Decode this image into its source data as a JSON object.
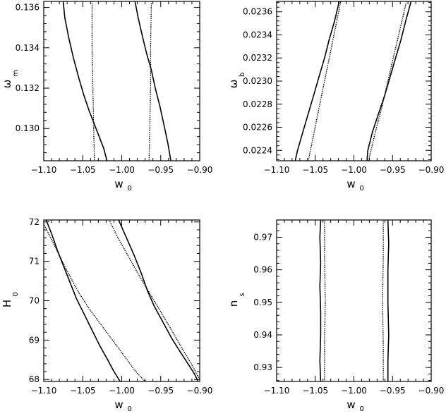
{
  "chart_data": [
    {
      "type": "line",
      "xlabel": "w",
      "xlabel_sub": "0",
      "ylabel": "ω",
      "ylabel_sub": "m",
      "xlim": [
        -1.1,
        -0.9
      ],
      "ylim": [
        0.1284,
        0.1363
      ],
      "xticks": [
        -1.1,
        -1.05,
        -1.0,
        -0.95,
        -0.9
      ],
      "xtick_labels": [
        "−1.10",
        "−1.05",
        "−1.00",
        "−0.95",
        "−0.90"
      ],
      "yticks": [
        0.13,
        0.132,
        0.134,
        0.136
      ],
      "ytick_labels": [
        "0.130",
        "0.132",
        "0.134",
        "0.136"
      ],
      "series": [
        {
          "style": "solid",
          "x": [
            -1.075,
            -1.073,
            -1.068,
            -1.062,
            -1.055,
            -1.049,
            -1.042,
            -1.035,
            -1.029,
            -1.023,
            -1.019
          ],
          "y": [
            0.1363,
            0.1355,
            0.1345,
            0.1335,
            0.1325,
            0.1317,
            0.1309,
            0.1302,
            0.1296,
            0.129,
            0.1284
          ]
        },
        {
          "style": "solid",
          "x": [
            -0.983,
            -0.979,
            -0.973,
            -0.968,
            -0.962,
            -0.957,
            -0.951,
            -0.946,
            -0.941,
            -0.937
          ],
          "y": [
            0.1363,
            0.1355,
            0.1345,
            0.1337,
            0.1329,
            0.132,
            0.1311,
            0.1302,
            0.1293,
            0.1284
          ]
        },
        {
          "style": "dotted",
          "x": [
            -1.038,
            -1.038,
            -1.037,
            -1.036,
            -1.035
          ],
          "y": [
            0.1363,
            0.134,
            0.132,
            0.13,
            0.1284
          ]
        },
        {
          "style": "dotted",
          "x": [
            -0.962,
            -0.963,
            -0.963,
            -0.964,
            -0.965
          ],
          "y": [
            0.1363,
            0.134,
            0.132,
            0.13,
            0.1284
          ]
        }
      ]
    },
    {
      "type": "line",
      "xlabel": "w",
      "xlabel_sub": "0",
      "ylabel": "ω",
      "ylabel_sub": "b",
      "xlim": [
        -1.1,
        -0.9
      ],
      "ylim": [
        0.02231,
        0.02369
      ],
      "xticks": [
        -1.1,
        -1.05,
        -1.0,
        -0.95,
        -0.9
      ],
      "xtick_labels": [
        "−1.10",
        "−1.05",
        "−1.00",
        "−0.95",
        "−0.90"
      ],
      "yticks": [
        0.0224,
        0.0226,
        0.0228,
        0.023,
        0.0232,
        0.0234,
        0.0236
      ],
      "ytick_labels": [
        "0.0224",
        "0.0226",
        "0.0228",
        "0.0230",
        "0.0232",
        "0.0234",
        "0.0236"
      ],
      "series": [
        {
          "style": "solid",
          "x": [
            -1.076,
            -1.073,
            -1.066,
            -1.059,
            -1.052,
            -1.045,
            -1.038,
            -1.032,
            -1.025,
            -1.019
          ],
          "y": [
            0.02231,
            0.0224,
            0.02256,
            0.02272,
            0.02288,
            0.02304,
            0.0232,
            0.02336,
            0.02352,
            0.02369
          ]
        },
        {
          "style": "solid",
          "x": [
            -0.983,
            -0.982,
            -0.976,
            -0.968,
            -0.96,
            -0.953,
            -0.946,
            -0.939,
            -0.933,
            -0.926
          ],
          "y": [
            0.02231,
            0.0224,
            0.02256,
            0.02272,
            0.02288,
            0.02304,
            0.0232,
            0.02336,
            0.02352,
            0.02369
          ]
        },
        {
          "style": "dotted",
          "x": [
            -1.059,
            -1.052,
            -1.045,
            -1.038,
            -1.031,
            -1.024,
            -1.017
          ],
          "y": [
            0.02231,
            0.02254,
            0.02277,
            0.023,
            0.02323,
            0.02346,
            0.02369
          ]
        },
        {
          "style": "dotted",
          "x": [
            -0.981,
            -0.973,
            -0.964,
            -0.956,
            -0.948,
            -0.94,
            -0.932
          ],
          "y": [
            0.02231,
            0.02254,
            0.02277,
            0.023,
            0.02323,
            0.02346,
            0.02369
          ]
        }
      ]
    },
    {
      "type": "line",
      "xlabel": "w",
      "xlabel_sub": "0",
      "ylabel": "H",
      "ylabel_sub": "0",
      "xlim": [
        -1.1,
        -0.9
      ],
      "ylim": [
        67.95,
        72.05
      ],
      "xticks": [
        -1.1,
        -1.05,
        -1.0,
        -0.95,
        -0.9
      ],
      "xtick_labels": [
        "−1.10",
        "−1.05",
        "−1.00",
        "−0.95",
        "−0.90"
      ],
      "yticks": [
        68,
        69,
        70,
        71,
        72
      ],
      "ytick_labels": [
        "68",
        "69",
        "70",
        "71",
        "72"
      ],
      "series": [
        {
          "style": "solid",
          "x": [
            -1.097,
            -1.09,
            -1.082,
            -1.074,
            -1.066,
            -1.058,
            -1.048,
            -1.038,
            -1.028,
            -1.018,
            -1.01,
            -1.002
          ],
          "y": [
            72.05,
            71.7,
            71.25,
            70.85,
            70.45,
            70.05,
            69.65,
            69.25,
            68.85,
            68.5,
            68.2,
            67.95
          ]
        },
        {
          "style": "solid",
          "x": [
            -1.004,
            -0.994,
            -0.984,
            -0.975,
            -0.967,
            -0.958,
            -0.947,
            -0.936,
            -0.925,
            -0.915,
            -0.907,
            -0.902
          ],
          "y": [
            72.05,
            71.6,
            71.15,
            70.7,
            70.25,
            69.85,
            69.45,
            69.05,
            68.7,
            68.4,
            68.15,
            67.95
          ]
        },
        {
          "style": "dotted",
          "x": [
            -1.1,
            -1.085,
            -1.07,
            -1.055,
            -1.04,
            -1.025,
            -1.01,
            -0.995,
            -0.982,
            -0.97
          ],
          "y": [
            71.95,
            71.35,
            70.75,
            70.2,
            69.75,
            69.35,
            68.95,
            68.55,
            68.2,
            67.95
          ]
        },
        {
          "style": "dotted",
          "x": [
            -1.016,
            -1.005,
            -0.992,
            -0.978,
            -0.963,
            -0.948,
            -0.933,
            -0.92,
            -0.908,
            -0.9
          ],
          "y": [
            72.05,
            71.6,
            71.15,
            70.65,
            70.15,
            69.65,
            69.15,
            68.7,
            68.3,
            68.0
          ]
        }
      ]
    },
    {
      "type": "line",
      "xlabel": "w",
      "xlabel_sub": "0",
      "ylabel": "n",
      "ylabel_sub": "s",
      "xlim": [
        -1.1,
        -0.9
      ],
      "ylim": [
        0.9257,
        0.9753
      ],
      "xticks": [
        -1.1,
        -1.05,
        -1.0,
        -0.95,
        -0.9
      ],
      "xtick_labels": [
        "−1.10",
        "−1.05",
        "−1.00",
        "−0.95",
        "−0.90"
      ],
      "yticks": [
        0.93,
        0.94,
        0.95,
        0.96,
        0.97
      ],
      "ytick_labels": [
        "0.93",
        "0.94",
        "0.95",
        "0.96",
        "0.97"
      ],
      "series": [
        {
          "style": "solid",
          "x": [
            -1.043,
            -1.044,
            -1.043,
            -1.044,
            -1.043,
            -1.043,
            -1.044,
            -1.043
          ],
          "y": [
            0.9753,
            0.97,
            0.962,
            0.955,
            0.947,
            0.94,
            0.932,
            0.9257
          ]
        },
        {
          "style": "solid",
          "x": [
            -0.956,
            -0.955,
            -0.956,
            -0.956,
            -0.955,
            -0.956,
            -0.956
          ],
          "y": [
            0.9753,
            0.968,
            0.96,
            0.95,
            0.94,
            0.932,
            0.9257
          ]
        },
        {
          "style": "dotted",
          "x": [
            -1.038,
            -1.038,
            -1.037,
            -1.038,
            -1.038
          ],
          "y": [
            0.9753,
            0.963,
            0.95,
            0.938,
            0.9257
          ]
        },
        {
          "style": "dotted",
          "x": [
            -0.962,
            -0.962,
            -0.963,
            -0.962,
            -0.962
          ],
          "y": [
            0.9753,
            0.963,
            0.95,
            0.938,
            0.9257
          ]
        }
      ]
    }
  ]
}
